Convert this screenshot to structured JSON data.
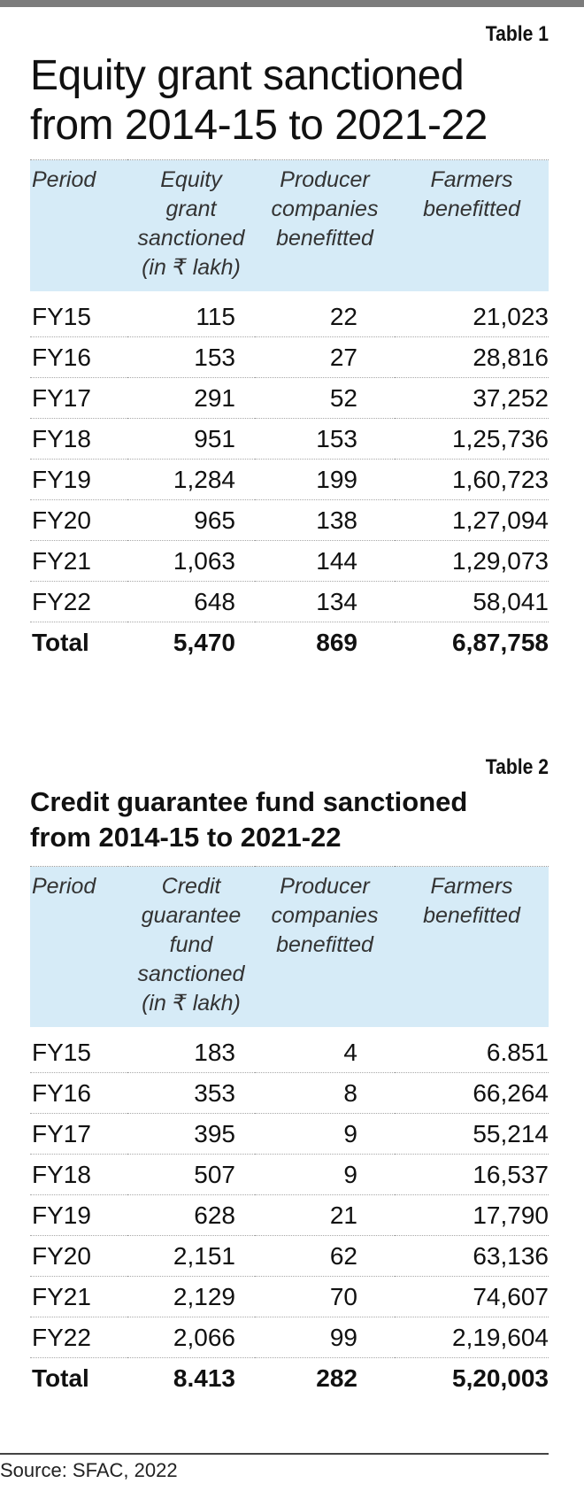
{
  "chart_data": [
    {
      "type": "table",
      "tag": "Table 1",
      "title": "Equity grant sanctioned from 2014-15 to 2021-22",
      "title_lines": [
        "Equity grant sanctioned",
        "from 2014-15 to 2021-22"
      ],
      "headers": [
        [
          "Period"
        ],
        [
          "Equity",
          "grant",
          "sanctioned",
          "(in ₹ lakh)"
        ],
        [
          "Producer",
          "companies",
          "benefitted"
        ],
        [
          "Farmers",
          "benefitted"
        ]
      ],
      "rows": [
        [
          "FY15",
          "115",
          "22",
          "21,023"
        ],
        [
          "FY16",
          "153",
          "27",
          "28,816"
        ],
        [
          "FY17",
          "291",
          "52",
          "37,252"
        ],
        [
          "FY18",
          "951",
          "153",
          "1,25,736"
        ],
        [
          "FY19",
          "1,284",
          "199",
          "1,60,723"
        ],
        [
          "FY20",
          "965",
          "138",
          "1,27,094"
        ],
        [
          "FY21",
          "1,063",
          "144",
          "1,29,073"
        ],
        [
          "FY22",
          "648",
          "134",
          "58,041"
        ]
      ],
      "total": [
        "Total",
        "5,470",
        "869",
        "6,87,758"
      ]
    },
    {
      "type": "table",
      "tag": "Table 2",
      "title": "Credit guarantee fund sanctioned from 2014-15 to 2021-22",
      "title_lines": [
        "Credit guarantee fund sanctioned",
        "from 2014-15 to 2021-22"
      ],
      "headers": [
        [
          "Period"
        ],
        [
          "Credit",
          "guarantee",
          "fund",
          "sanctioned",
          "(in ₹ lakh)"
        ],
        [
          "Producer",
          "companies",
          "benefitted"
        ],
        [
          "Farmers",
          "benefitted"
        ]
      ],
      "rows": [
        [
          "FY15",
          "183",
          "4",
          "6.851"
        ],
        [
          "FY16",
          "353",
          "8",
          "66,264"
        ],
        [
          "FY17",
          "395",
          "9",
          "55,214"
        ],
        [
          "FY18",
          "507",
          "9",
          "16,537"
        ],
        [
          "FY19",
          "628",
          "21",
          "17,790"
        ],
        [
          "FY20",
          "2,151",
          "62",
          "63,136"
        ],
        [
          "FY21",
          "2,129",
          "70",
          "74,607"
        ],
        [
          "FY22",
          "2,066",
          "99",
          "2,19,604"
        ]
      ],
      "total": [
        "Total",
        "8.413",
        "282",
        "5,20,003"
      ]
    }
  ],
  "source": "Source: SFAC, 2022",
  "colors": {
    "header_bg": "#d6ebf7",
    "top_bar": "#7c7c7c"
  }
}
